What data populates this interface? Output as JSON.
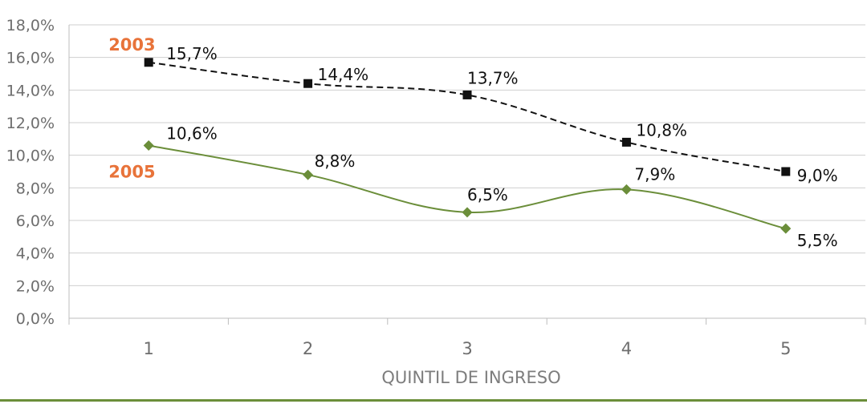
{
  "chart_data": {
    "type": "line",
    "xlabel": "QUINTIL DE INGRESO",
    "ylabel": "",
    "categories": [
      "1",
      "2",
      "3",
      "4",
      "5"
    ],
    "ylim": [
      0,
      18
    ],
    "yticks": [
      "0,0%",
      "2,0%",
      "4,0%",
      "6,0%",
      "8,0%",
      "10,0%",
      "12,0%",
      "14,0%",
      "16,0%",
      "18,0%"
    ],
    "grid": true,
    "series": [
      {
        "name": "2003",
        "values": [
          15.7,
          14.4,
          13.7,
          10.8,
          9.0
        ],
        "labels": [
          "15,7%",
          "14,4%",
          "13,7%",
          "10,8%",
          "9,0%"
        ],
        "color": "#111111",
        "line_style": "dashed",
        "marker": "square",
        "name_color": "#e8733a"
      },
      {
        "name": "2005",
        "values": [
          10.6,
          8.8,
          6.5,
          7.9,
          5.5
        ],
        "labels": [
          "10,6%",
          "8,8%",
          "6,5%",
          "7,9%",
          "5,5%"
        ],
        "color": "#6b8e3a",
        "line_style": "solid",
        "marker": "diamond",
        "name_color": "#e8733a"
      }
    ]
  }
}
